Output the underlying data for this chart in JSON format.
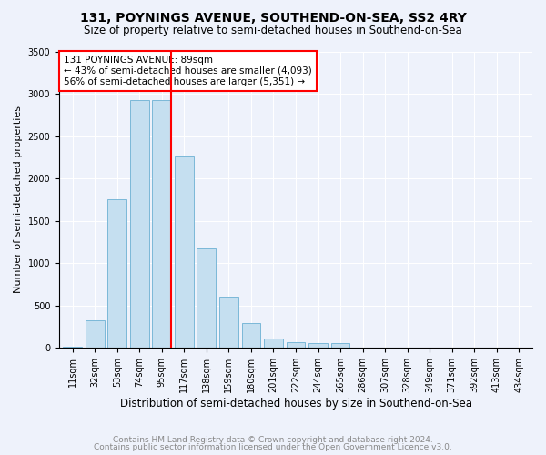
{
  "title": "131, POYNINGS AVENUE, SOUTHEND-ON-SEA, SS2 4RY",
  "subtitle": "Size of property relative to semi-detached houses in Southend-on-Sea",
  "xlabel": "Distribution of semi-detached houses by size in Southend-on-Sea",
  "ylabel": "Number of semi-detached properties",
  "footnote1": "Contains HM Land Registry data © Crown copyright and database right 2024.",
  "footnote2": "Contains public sector information licensed under the Open Government Licence v3.0.",
  "bar_labels": [
    "11sqm",
    "32sqm",
    "53sqm",
    "74sqm",
    "95sqm",
    "117sqm",
    "138sqm",
    "159sqm",
    "180sqm",
    "201sqm",
    "222sqm",
    "244sqm",
    "265sqm",
    "286sqm",
    "307sqm",
    "328sqm",
    "349sqm",
    "371sqm",
    "392sqm",
    "413sqm",
    "434sqm"
  ],
  "bar_values": [
    10,
    320,
    1750,
    2920,
    2920,
    2270,
    1170,
    600,
    290,
    115,
    70,
    55,
    55,
    0,
    0,
    0,
    0,
    0,
    0,
    0,
    0
  ],
  "bar_color": "#c5dff0",
  "bar_edge_color": "#7bb8d8",
  "vline_color": "red",
  "annotation_text": "131 POYNINGS AVENUE: 89sqm\n← 43% of semi-detached houses are smaller (4,093)\n56% of semi-detached houses are larger (5,351) →",
  "annotation_box_color": "white",
  "annotation_box_edge": "red",
  "ylim": [
    0,
    3500
  ],
  "title_fontsize": 10,
  "subtitle_fontsize": 8.5,
  "xlabel_fontsize": 8.5,
  "ylabel_fontsize": 8,
  "tick_fontsize": 7,
  "annotation_fontsize": 7.5,
  "footnote_fontsize": 6.5,
  "background_color": "#eef2fb",
  "plot_background_color": "#eef2fb",
  "vline_index": 4
}
